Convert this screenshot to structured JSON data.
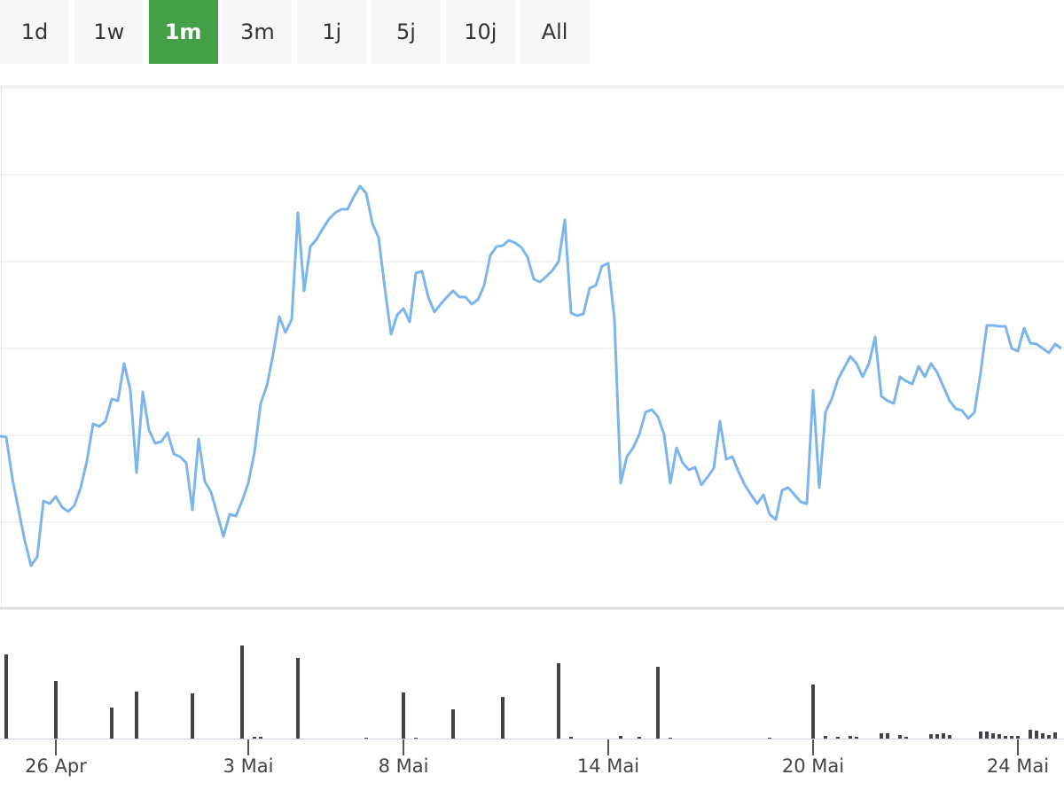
{
  "range_selector": {
    "buttons": [
      "1d",
      "1w",
      "1m",
      "3m",
      "1j",
      "5j",
      "10j",
      "All"
    ],
    "active": 2,
    "active_color": "#43a047"
  },
  "chart_data": {
    "type": "stock",
    "categories": [
      null,
      null,
      null,
      null,
      null,
      null,
      null,
      null,
      null,
      "26 Apr",
      null,
      null,
      null,
      null,
      null,
      null,
      null,
      null,
      null,
      null,
      null,
      null,
      null,
      null,
      null,
      null,
      null,
      null,
      null,
      null,
      null,
      null,
      null,
      null,
      null,
      null,
      null,
      null,
      null,
      null,
      "3 Mai",
      null,
      null,
      null,
      null,
      null,
      null,
      null,
      null,
      null,
      null,
      null,
      null,
      null,
      null,
      null,
      null,
      null,
      null,
      null,
      null,
      null,
      null,
      null,
      null,
      "8 Mai",
      null,
      null,
      null,
      null,
      null,
      null,
      null,
      null,
      null,
      null,
      null,
      null,
      null,
      null,
      null,
      null,
      null,
      null,
      null,
      null,
      null,
      null,
      null,
      null,
      null,
      null,
      null,
      null,
      null,
      null,
      null,
      null,
      "14 Mai",
      null,
      null,
      null,
      null,
      null,
      null,
      null,
      null,
      null,
      null,
      null,
      null,
      null,
      null,
      null,
      null,
      null,
      null,
      null,
      null,
      null,
      null,
      null,
      null,
      null,
      null,
      null,
      null,
      null,
      null,
      null,
      null,
      "20 Mai",
      null,
      null,
      null,
      null,
      null,
      null,
      null,
      null,
      null,
      null,
      null,
      null,
      null,
      null,
      null,
      null,
      null,
      null,
      null,
      null,
      null,
      null,
      null,
      null,
      null,
      null,
      null,
      null,
      null,
      null,
      null,
      null,
      "24 Mai",
      null,
      null,
      null,
      null,
      null,
      null,
      null
    ],
    "price": {
      "color": "#7cb5ec",
      "ylim": [
        0,
        590
      ],
      "ygrid": [
        98,
        196,
        294,
        392,
        490,
        588
      ],
      "values": [
        195,
        194,
        147,
        112,
        77,
        49,
        59,
        122,
        119,
        127,
        115,
        110,
        117,
        137,
        167,
        209,
        206,
        212,
        237,
        235,
        277,
        247,
        154,
        245,
        202,
        187,
        189,
        199,
        175,
        172,
        165,
        112,
        192,
        144,
        132,
        107,
        82,
        107,
        105,
        122,
        142,
        177,
        232,
        252,
        287,
        330,
        312,
        327,
        447,
        359,
        409,
        417,
        429,
        440,
        447,
        451,
        451,
        465,
        477,
        469,
        435,
        419,
        362,
        310,
        332,
        339,
        324,
        379,
        381,
        352,
        335,
        344,
        352,
        359,
        352,
        352,
        344,
        349,
        365,
        399,
        409,
        410,
        416,
        413,
        408,
        397,
        372,
        369,
        375,
        382,
        392,
        439,
        334,
        331,
        333,
        362,
        365,
        387,
        390,
        327,
        142,
        172,
        182,
        197,
        222,
        225,
        217,
        197,
        142,
        182,
        165,
        157,
        160,
        140,
        149,
        159,
        212,
        169,
        172,
        155,
        140,
        129,
        119,
        129,
        107,
        101,
        134,
        137,
        129,
        121,
        119,
        247,
        137,
        222,
        237,
        259,
        272,
        285,
        277,
        262,
        277,
        307,
        240,
        235,
        232,
        262,
        257,
        254,
        274,
        262,
        277,
        267,
        251,
        235,
        226,
        224,
        215,
        222,
        267,
        320,
        320,
        319,
        319,
        294,
        291,
        317,
        300,
        299,
        294,
        289,
        299,
        294
      ]
    },
    "volume": {
      "color": "#434348",
      "ylim": [
        0,
        110
      ],
      "values": [
        0,
        95,
        0,
        0,
        0,
        0,
        0,
        0,
        0,
        65,
        0,
        0,
        0,
        0,
        0,
        0,
        0,
        0,
        35,
        0,
        0,
        0,
        53,
        0,
        0,
        0,
        0,
        0,
        0,
        0,
        0,
        51,
        0,
        0,
        0,
        0,
        0,
        0,
        0,
        105,
        0,
        2,
        2,
        0,
        0,
        0,
        0,
        0,
        91,
        0,
        0,
        0,
        0,
        0,
        0,
        0,
        0,
        0,
        0,
        1,
        0,
        0,
        0,
        0,
        0,
        52,
        0,
        1,
        0,
        0,
        0,
        0,
        0,
        33,
        0,
        0,
        0,
        0,
        0,
        0,
        0,
        47,
        0,
        0,
        0,
        0,
        0,
        0,
        0,
        0,
        85,
        0,
        2,
        0,
        0,
        0,
        0,
        0,
        0,
        0,
        3,
        0,
        0,
        2,
        0,
        0,
        81,
        0,
        1,
        0,
        0,
        0,
        0,
        0,
        0,
        0,
        0,
        0,
        0,
        0,
        0,
        0,
        0,
        0,
        1,
        0,
        0,
        0,
        0,
        0,
        0,
        61,
        0,
        3,
        0,
        2,
        0,
        3,
        2,
        0,
        0,
        0,
        6,
        6,
        0,
        4,
        2,
        0,
        0,
        0,
        5,
        5,
        6,
        4,
        0,
        0,
        0,
        0,
        8,
        8,
        6,
        5,
        3,
        3,
        3,
        0,
        10,
        9,
        6,
        4,
        7,
        0
      ]
    }
  }
}
